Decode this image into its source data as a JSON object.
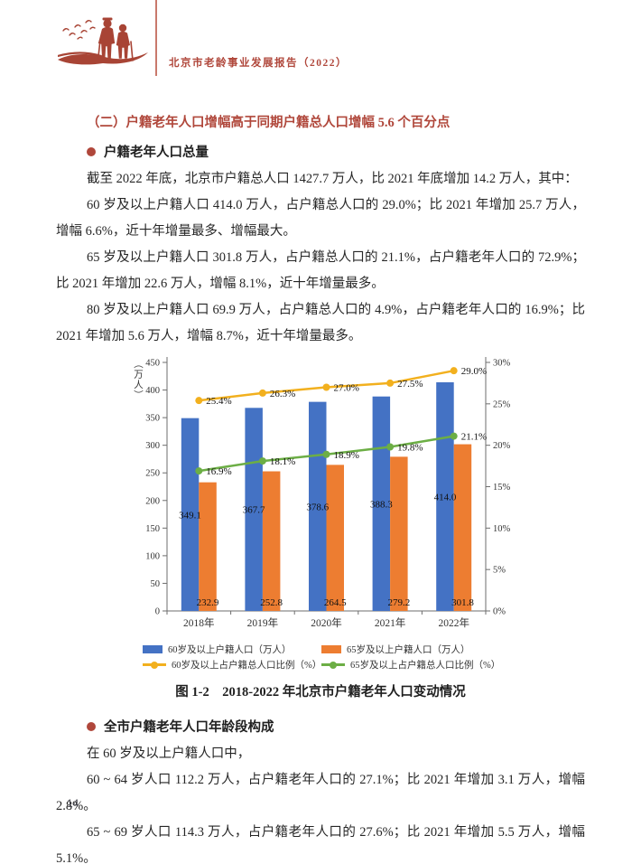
{
  "header": {
    "title": "北京市老龄事业发展报告（2022）"
  },
  "colors": {
    "accent_red": "#b0473b"
  },
  "sections": {
    "heading": "（二）户籍老年人口增幅高于同期户籍总人口增幅 5.6 个百分点",
    "bullet1": "户籍老年人口总量",
    "paragraphs1": [
      "截至 2022 年底，北京市户籍总人口 1427.7 万人，比 2021 年底增加 14.2 万人，其中：",
      "60 岁及以上户籍人口 414.0 万人，占户籍总人口的 29.0%；比 2021 年增加 25.7 万人，增幅 6.6%，近十年增量最多、增幅最大。",
      "65 岁及以上户籍人口 301.8 万人，占户籍总人口的 21.1%，占户籍老年人口的 72.9%；比 2021 年增加 22.6 万人，增幅 8.1%，近十年增量最多。",
      "80 岁及以上户籍人口 69.9 万人，占户籍总人口的 4.9%，占户籍老年人口的 16.9%；比 2021 年增加 5.6 万人，增幅 8.7%，近十年增量最多。"
    ],
    "bullet2": "全市户籍老年人口年龄段构成",
    "paragraphs2": [
      "在 60 岁及以上户籍人口中，",
      "60 ~ 64 岁人口 112.2 万人，占户籍老年人口的 27.1%；比 2021 年增加 3.1 万人，增幅 2.8%。",
      "65 ~ 69 岁人口 114.3 万人，占户籍老年人口的 27.6%；比 2021 年增加 5.5 万人，增幅 5.1%。"
    ]
  },
  "chart_data": {
    "type": "bar",
    "subtype": "grouped bars with two percentage lines (dual axis)",
    "title": "图 1-2　2018-2022 年北京市户籍老年人口变动情况",
    "categories": [
      "2018年",
      "2019年",
      "2020年",
      "2021年",
      "2022年"
    ],
    "left_axis": {
      "label": "（万人）",
      "min": 0,
      "max": 450,
      "step": 50
    },
    "right_axis": {
      "min": 0,
      "max": 30,
      "step": 5,
      "unit": "%"
    },
    "grid": false,
    "legend_position": "bottom",
    "series": [
      {
        "name": "60岁及以上户籍人口（万人）",
        "type": "bar",
        "axis": "left",
        "color": "#4472c4",
        "values": [
          349.1,
          367.7,
          378.6,
          388.3,
          414.0
        ],
        "labels": [
          "349.1",
          "367.7",
          "378.6",
          "388.3",
          "414.0"
        ],
        "label_position": "center"
      },
      {
        "name": "65岁及以上户籍人口（万人）",
        "type": "bar",
        "axis": "left",
        "color": "#ed7d31",
        "values": [
          232.9,
          252.8,
          264.5,
          279.2,
          301.8
        ],
        "labels": [
          "232.9",
          "252.8",
          "264.5",
          "279.2",
          "301.8"
        ],
        "label_position": "inside-base"
      },
      {
        "name": "60岁及以上占户籍总人口比例（%）",
        "type": "line",
        "axis": "right",
        "color": "#f2b01e",
        "values": [
          25.4,
          26.3,
          27.0,
          27.5,
          29.0
        ],
        "labels": [
          "25.4%",
          "26.3%",
          "27.0%",
          "27.5%",
          "29.0%"
        ],
        "label_position": "right"
      },
      {
        "name": "65岁及以上占户籍总人口比例（%）",
        "type": "line",
        "axis": "right",
        "color": "#6cae45",
        "values": [
          16.9,
          18.1,
          18.9,
          19.8,
          21.1
        ],
        "labels": [
          "16.9%",
          "18.1%",
          "18.9%",
          "19.8%",
          "21.1%"
        ],
        "label_position": "right"
      }
    ]
  },
  "page": {
    "number": "14"
  }
}
